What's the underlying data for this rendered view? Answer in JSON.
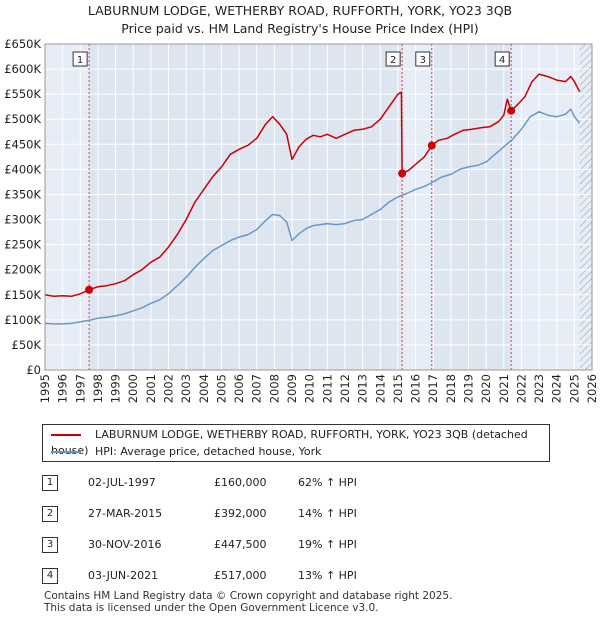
{
  "title_line1": "LABURNUM LODGE, WETHERBY ROAD, RUFFORTH, YORK, YO23 3QB",
  "title_line2": "Price paid vs. HM Land Registry's House Price Index (HPI)",
  "colors": {
    "property": "#cc0000",
    "hpi": "#6a97c9",
    "plot_bg": "#e7edf6",
    "shade": "#dde5f1",
    "marker_line": "#cc0000",
    "hatch": "#999999"
  },
  "chart_data": {
    "type": "line",
    "title": "LABURNUM LODGE, WETHERBY ROAD, RUFFORTH, YORK, YO23 3QB",
    "xlim": [
      1995,
      2026
    ],
    "ylim": [
      0,
      650000
    ],
    "x_ticks": [
      1995,
      1996,
      1997,
      1998,
      1999,
      2000,
      2001,
      2002,
      2003,
      2004,
      2005,
      2006,
      2007,
      2008,
      2009,
      2010,
      2011,
      2012,
      2013,
      2014,
      2015,
      2016,
      2017,
      2018,
      2019,
      2020,
      2021,
      2022,
      2023,
      2024,
      2025,
      2026
    ],
    "y_ticks": [
      0,
      50000,
      100000,
      150000,
      200000,
      250000,
      300000,
      350000,
      400000,
      450000,
      500000,
      550000,
      600000,
      650000
    ],
    "y_tick_labels": [
      "£0",
      "£50K",
      "£100K",
      "£150K",
      "£200K",
      "£250K",
      "£300K",
      "£350K",
      "£400K",
      "£450K",
      "£500K",
      "£550K",
      "£600K",
      "£650K"
    ],
    "data_end_year": 2025.3,
    "series": [
      {
        "name": "LABURNUM LODGE, WETHERBY ROAD, RUFFORTH, YORK, YO23 3QB (detached house)",
        "color": "#cc0000",
        "points": [
          [
            1995.0,
            150000
          ],
          [
            1995.5,
            147000
          ],
          [
            1996.0,
            148000
          ],
          [
            1996.5,
            147000
          ],
          [
            1997.0,
            152000
          ],
          [
            1997.5,
            160000
          ],
          [
            1998.0,
            166000
          ],
          [
            1998.5,
            168000
          ],
          [
            1999.0,
            172000
          ],
          [
            1999.5,
            178000
          ],
          [
            2000.0,
            190000
          ],
          [
            2000.5,
            200000
          ],
          [
            2001.0,
            215000
          ],
          [
            2001.5,
            225000
          ],
          [
            2002.0,
            245000
          ],
          [
            2002.5,
            270000
          ],
          [
            2003.0,
            300000
          ],
          [
            2003.5,
            335000
          ],
          [
            2004.0,
            360000
          ],
          [
            2004.5,
            385000
          ],
          [
            2005.0,
            405000
          ],
          [
            2005.5,
            430000
          ],
          [
            2006.0,
            440000
          ],
          [
            2006.5,
            448000
          ],
          [
            2007.0,
            462000
          ],
          [
            2007.5,
            490000
          ],
          [
            2007.9,
            505000
          ],
          [
            2008.3,
            490000
          ],
          [
            2008.7,
            470000
          ],
          [
            2009.0,
            420000
          ],
          [
            2009.4,
            445000
          ],
          [
            2009.8,
            460000
          ],
          [
            2010.2,
            468000
          ],
          [
            2010.6,
            465000
          ],
          [
            2011.0,
            470000
          ],
          [
            2011.5,
            462000
          ],
          [
            2012.0,
            470000
          ],
          [
            2012.5,
            478000
          ],
          [
            2013.0,
            480000
          ],
          [
            2013.5,
            485000
          ],
          [
            2014.0,
            500000
          ],
          [
            2014.5,
            525000
          ],
          [
            2015.0,
            550000
          ],
          [
            2015.2,
            554000
          ],
          [
            2015.24,
            392000
          ],
          [
            2015.6,
            398000
          ],
          [
            2016.0,
            410000
          ],
          [
            2016.5,
            425000
          ],
          [
            2016.92,
            447500
          ],
          [
            2017.3,
            458000
          ],
          [
            2017.8,
            462000
          ],
          [
            2018.2,
            470000
          ],
          [
            2018.7,
            478000
          ],
          [
            2019.2,
            480000
          ],
          [
            2019.7,
            483000
          ],
          [
            2020.2,
            485000
          ],
          [
            2020.7,
            495000
          ],
          [
            2021.0,
            508000
          ],
          [
            2021.2,
            540000
          ],
          [
            2021.42,
            517000
          ],
          [
            2021.8,
            530000
          ],
          [
            2022.2,
            545000
          ],
          [
            2022.6,
            575000
          ],
          [
            2023.0,
            590000
          ],
          [
            2023.5,
            585000
          ],
          [
            2024.0,
            578000
          ],
          [
            2024.5,
            575000
          ],
          [
            2024.8,
            585000
          ],
          [
            2025.0,
            575000
          ],
          [
            2025.3,
            555000
          ]
        ]
      },
      {
        "name": "HPI: Average price, detached house, York",
        "color": "#6a97c9",
        "points": [
          [
            1995.0,
            93000
          ],
          [
            1995.5,
            92000
          ],
          [
            1996.0,
            92000
          ],
          [
            1996.5,
            93000
          ],
          [
            1997.0,
            96000
          ],
          [
            1997.5,
            99000
          ],
          [
            1998.0,
            103000
          ],
          [
            1998.5,
            105000
          ],
          [
            1999.0,
            108000
          ],
          [
            1999.5,
            112000
          ],
          [
            2000.0,
            118000
          ],
          [
            2000.5,
            124000
          ],
          [
            2001.0,
            133000
          ],
          [
            2001.5,
            140000
          ],
          [
            2002.0,
            152000
          ],
          [
            2002.5,
            168000
          ],
          [
            2003.0,
            185000
          ],
          [
            2003.5,
            205000
          ],
          [
            2004.0,
            222000
          ],
          [
            2004.5,
            238000
          ],
          [
            2005.0,
            248000
          ],
          [
            2005.5,
            258000
          ],
          [
            2006.0,
            265000
          ],
          [
            2006.5,
            270000
          ],
          [
            2007.0,
            280000
          ],
          [
            2007.5,
            298000
          ],
          [
            2007.9,
            310000
          ],
          [
            2008.3,
            308000
          ],
          [
            2008.7,
            295000
          ],
          [
            2009.0,
            258000
          ],
          [
            2009.4,
            272000
          ],
          [
            2009.8,
            282000
          ],
          [
            2010.2,
            288000
          ],
          [
            2010.6,
            290000
          ],
          [
            2011.0,
            292000
          ],
          [
            2011.5,
            290000
          ],
          [
            2012.0,
            292000
          ],
          [
            2012.5,
            298000
          ],
          [
            2013.0,
            300000
          ],
          [
            2013.5,
            310000
          ],
          [
            2014.0,
            320000
          ],
          [
            2014.5,
            335000
          ],
          [
            2015.0,
            345000
          ],
          [
            2015.5,
            352000
          ],
          [
            2016.0,
            360000
          ],
          [
            2016.5,
            366000
          ],
          [
            2017.0,
            375000
          ],
          [
            2017.5,
            385000
          ],
          [
            2018.0,
            390000
          ],
          [
            2018.5,
            400000
          ],
          [
            2019.0,
            405000
          ],
          [
            2019.5,
            408000
          ],
          [
            2020.0,
            415000
          ],
          [
            2020.5,
            430000
          ],
          [
            2021.0,
            445000
          ],
          [
            2021.5,
            460000
          ],
          [
            2022.0,
            480000
          ],
          [
            2022.5,
            505000
          ],
          [
            2023.0,
            515000
          ],
          [
            2023.5,
            508000
          ],
          [
            2024.0,
            505000
          ],
          [
            2024.5,
            510000
          ],
          [
            2024.8,
            520000
          ],
          [
            2025.0,
            505000
          ],
          [
            2025.3,
            492000
          ]
        ]
      }
    ],
    "sale_markers": [
      {
        "label": "1",
        "x": 1997.5,
        "y": 160000
      },
      {
        "label": "2",
        "x": 2015.24,
        "y": 392000
      },
      {
        "label": "3",
        "x": 2016.92,
        "y": 447500
      },
      {
        "label": "4",
        "x": 2021.42,
        "y": 517000
      }
    ]
  },
  "legend": {
    "property": "LABURNUM LODGE, WETHERBY ROAD, RUFFORTH, YORK, YO23 3QB (detached house)",
    "hpi": "HPI: Average price, detached house, York"
  },
  "sales": [
    {
      "num": "1",
      "date": "02-JUL-1997",
      "price": "£160,000",
      "hpi": "62% ↑ HPI"
    },
    {
      "num": "2",
      "date": "27-MAR-2015",
      "price": "£392,000",
      "hpi": "14% ↑ HPI"
    },
    {
      "num": "3",
      "date": "30-NOV-2016",
      "price": "£447,500",
      "hpi": "19% ↑ HPI"
    },
    {
      "num": "4",
      "date": "03-JUN-2021",
      "price": "£517,000",
      "hpi": "13% ↑ HPI"
    }
  ],
  "footer": {
    "line1": "Contains HM Land Registry data © Crown copyright and database right 2025.",
    "line2": "This data is licensed under the Open Government Licence v3.0."
  }
}
